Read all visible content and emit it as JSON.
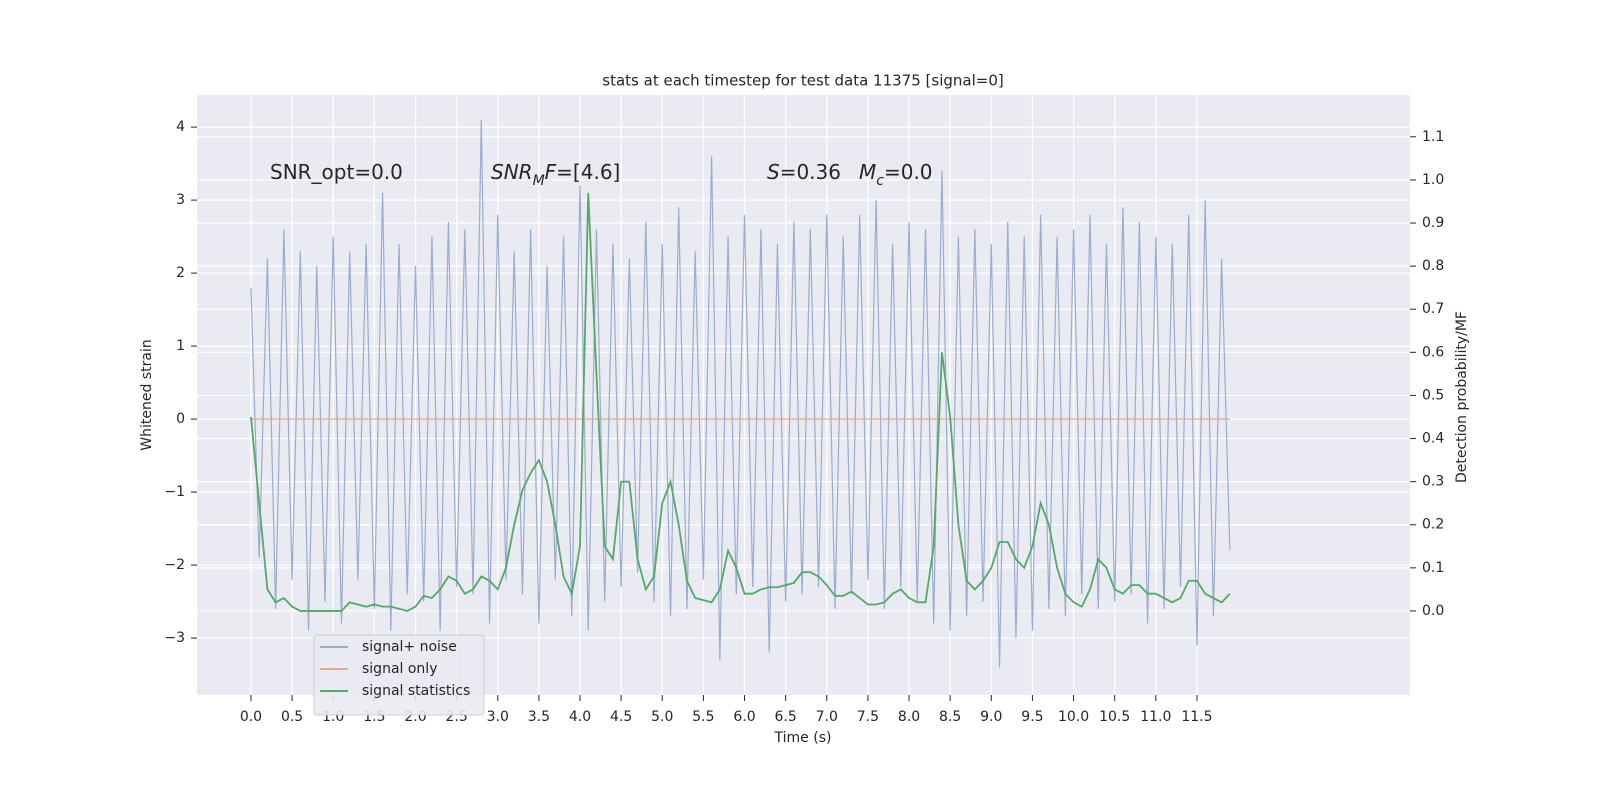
{
  "chart_data": {
    "type": "line",
    "title": "stats at each timestep for test data 11375 [signal=0]",
    "xlabel": "Time (s)",
    "ylabel": "Whitened strain",
    "y2label": "Detection probability/MF",
    "annotations": [
      [
        {
          "text": "SNR_opt=0.0"
        }
      ],
      [
        {
          "text": "SNR",
          "italic": true
        },
        {
          "text": "M",
          "italic": true,
          "sub": true
        },
        {
          "text": "F",
          "italic": true
        },
        {
          "text": "=[4.6]"
        }
      ],
      [
        {
          "text": "S",
          "italic": true
        },
        {
          "text": "=0.36"
        }
      ],
      [
        {
          "text": "M",
          "italic": true
        },
        {
          "text": "c",
          "italic": true,
          "sub": true
        },
        {
          "text": "=0.0"
        }
      ]
    ],
    "grid": true,
    "legend": "lower left",
    "xlim": [
      -0.656,
      14.09
    ],
    "ylim": [
      -3.78,
      4.44
    ],
    "y2lim": [
      -0.195,
      1.197
    ],
    "xticks": [
      {
        "value": 0,
        "label": "0.0"
      },
      0.5,
      {
        "value": 1,
        "label": "1.0"
      },
      1.5,
      {
        "value": 2,
        "label": "2.0"
      },
      2.5,
      {
        "value": 3,
        "label": "3.0"
      },
      3.5,
      {
        "value": 4,
        "label": "4.0"
      },
      4.5,
      {
        "value": 5,
        "label": "5.0"
      },
      5.5,
      {
        "value": 6,
        "label": "6.0"
      },
      6.5,
      {
        "value": 7,
        "label": "7.0"
      },
      7.5,
      {
        "value": 8,
        "label": "8.0"
      },
      8.5,
      {
        "value": 9,
        "label": "9.0"
      },
      9.5,
      {
        "value": 10,
        "label": "10.0"
      },
      10.5,
      {
        "value": 11,
        "label": "11.0"
      },
      11.5
    ],
    "yticks": [
      {
        "value": -3,
        "label": "−3"
      },
      {
        "value": -2,
        "label": "−2"
      },
      {
        "value": -1,
        "label": "−1"
      },
      0,
      1,
      2,
      3,
      4
    ],
    "y2ticks": [
      {
        "value": 0,
        "label": "0.0"
      },
      0.1,
      0.2,
      0.3,
      0.4,
      0.5,
      0.6,
      0.7,
      0.8,
      0.9,
      {
        "value": 1,
        "label": "1.0"
      },
      1.1
    ],
    "x": [
      0,
      0.1,
      0.2,
      0.3,
      0.4,
      0.5,
      0.6,
      0.7,
      0.8,
      0.9,
      1,
      1.1,
      1.2,
      1.3,
      1.4,
      1.5,
      1.6,
      1.7,
      1.8,
      1.9,
      2,
      2.1,
      2.2,
      2.3,
      2.4,
      2.5,
      2.6,
      2.7,
      2.8,
      2.9,
      3,
      3.1,
      3.2,
      3.3,
      3.4,
      3.5,
      3.6,
      3.7,
      3.8,
      3.9,
      4,
      4.1,
      4.2,
      4.3,
      4.4,
      4.5,
      4.6,
      4.7,
      4.8,
      4.9,
      5,
      5.1,
      5.2,
      5.3,
      5.4,
      5.5,
      5.6,
      5.7,
      5.8,
      5.9,
      6,
      6.1,
      6.2,
      6.3,
      6.4,
      6.5,
      6.6,
      6.7,
      6.8,
      6.9,
      7,
      7.1,
      7.2,
      7.3,
      7.4,
      7.5,
      7.6,
      7.7,
      7.8,
      7.9,
      8,
      8.1,
      8.2,
      8.3,
      8.4,
      8.5,
      8.6,
      8.7,
      8.8,
      8.9,
      9,
      9.1,
      9.2,
      9.3,
      9.4,
      9.5,
      9.6,
      9.7,
      9.8,
      9.9,
      10,
      10.1,
      10.2,
      10.3,
      10.4,
      10.5,
      10.6,
      10.7,
      10.8,
      10.9,
      11,
      11.1,
      11.2,
      11.3,
      11.4,
      11.5,
      11.6,
      11.7,
      11.8,
      11.9
    ],
    "series": [
      {
        "name": "signal+ noise",
        "color": "#9aaccf",
        "values": [
          1.8,
          -1.9,
          2.2,
          -2.6,
          2.6,
          -2.2,
          2.3,
          -2.9,
          2.1,
          -2.5,
          2.5,
          -2.8,
          2.3,
          -2.2,
          2.4,
          -2.6,
          3.1,
          -2.9,
          2.4,
          -2.4,
          2.1,
          -2.5,
          2.5,
          -2.9,
          2.7,
          -2.3,
          2.6,
          -2.4,
          4.1,
          -2.8,
          2.8,
          -2.2,
          2.3,
          -2.4,
          2.6,
          -2.8,
          2.1,
          -2.2,
          2.5,
          -2.7,
          3.2,
          -2.9,
          2.6,
          -2.5,
          2.4,
          -2.3,
          2.2,
          -2.1,
          2.7,
          -2.5,
          2.4,
          -2.7,
          2.9,
          -2.6,
          2.3,
          -2.2,
          3.6,
          -3.3,
          2.5,
          -2.4,
          2.8,
          -2.3,
          2.6,
          -3.2,
          2.4,
          -2.5,
          2.7,
          -2.4,
          2.6,
          -2.3,
          2.8,
          -2.6,
          2.5,
          -2.4,
          2.8,
          -2.2,
          3.0,
          -2.6,
          2.4,
          -2.3,
          2.7,
          -2.5,
          2.6,
          -2.8,
          3.4,
          -2.9,
          2.5,
          -2.7,
          2.6,
          -2.5,
          2.4,
          -3.4,
          2.7,
          -3.0,
          2.5,
          -2.9,
          2.8,
          -2.6,
          2.5,
          -2.7,
          2.6,
          -2.4,
          2.8,
          -2.6,
          2.4,
          -2.5,
          2.9,
          -2.4,
          2.7,
          -2.8,
          2.5,
          -2.6,
          2.4,
          -2.3,
          2.8,
          -3.1,
          3.0,
          -2.7,
          2.2,
          -1.8
        ]
      },
      {
        "name": "signal only",
        "color": "#e8a98a",
        "values": [
          0,
          0,
          0,
          0,
          0,
          0,
          0,
          0,
          0,
          0,
          0,
          0,
          0,
          0,
          0,
          0,
          0,
          0,
          0,
          0,
          0,
          0,
          0,
          0,
          0,
          0,
          0,
          0,
          0,
          0,
          0,
          0,
          0,
          0,
          0,
          0,
          0,
          0,
          0,
          0,
          0,
          0,
          0,
          0,
          0,
          0,
          0,
          0,
          0,
          0,
          0,
          0,
          0,
          0,
          0,
          0,
          0,
          0,
          0,
          0,
          0,
          0,
          0,
          0,
          0,
          0,
          0,
          0,
          0,
          0,
          0,
          0,
          0,
          0,
          0,
          0,
          0,
          0,
          0,
          0,
          0,
          0,
          0,
          0,
          0,
          0,
          0,
          0,
          0,
          0,
          0,
          0,
          0,
          0,
          0,
          0,
          0,
          0,
          0,
          0,
          0,
          0,
          0,
          0,
          0,
          0,
          0,
          0,
          0,
          0,
          0,
          0,
          0,
          0,
          0,
          0,
          0,
          0,
          0,
          0
        ]
      },
      {
        "name": "signal statistics",
        "color": "#55a868",
        "axis": "y2",
        "values": [
          0.45,
          0.25,
          0.05,
          0.02,
          0.03,
          0.01,
          0,
          0,
          0,
          0,
          0,
          0,
          0.02,
          0.015,
          0.01,
          0.015,
          0.01,
          0.01,
          0.005,
          0,
          0.01,
          0.035,
          0.03,
          0.05,
          0.08,
          0.07,
          0.04,
          0.05,
          0.08,
          0.07,
          0.05,
          0.1,
          0.2,
          0.28,
          0.32,
          0.35,
          0.3,
          0.2,
          0.08,
          0.04,
          0.15,
          0.97,
          0.55,
          0.15,
          0.12,
          0.3,
          0.3,
          0.12,
          0.05,
          0.08,
          0.25,
          0.3,
          0.2,
          0.07,
          0.03,
          0.025,
          0.02,
          0.05,
          0.14,
          0.1,
          0.04,
          0.04,
          0.05,
          0.055,
          0.055,
          0.06,
          0.065,
          0.09,
          0.09,
          0.08,
          0.06,
          0.035,
          0.035,
          0.045,
          0.03,
          0.015,
          0.015,
          0.02,
          0.04,
          0.05,
          0.03,
          0.02,
          0.02,
          0.15,
          0.6,
          0.45,
          0.2,
          0.07,
          0.05,
          0.07,
          0.1,
          0.16,
          0.16,
          0.12,
          0.1,
          0.15,
          0.25,
          0.2,
          0.1,
          0.04,
          0.02,
          0.01,
          0.05,
          0.12,
          0.1,
          0.05,
          0.04,
          0.06,
          0.06,
          0.04,
          0.04,
          0.03,
          0.02,
          0.03,
          0.07,
          0.07,
          0.04,
          0.03,
          0.02,
          0.04
        ]
      }
    ]
  }
}
